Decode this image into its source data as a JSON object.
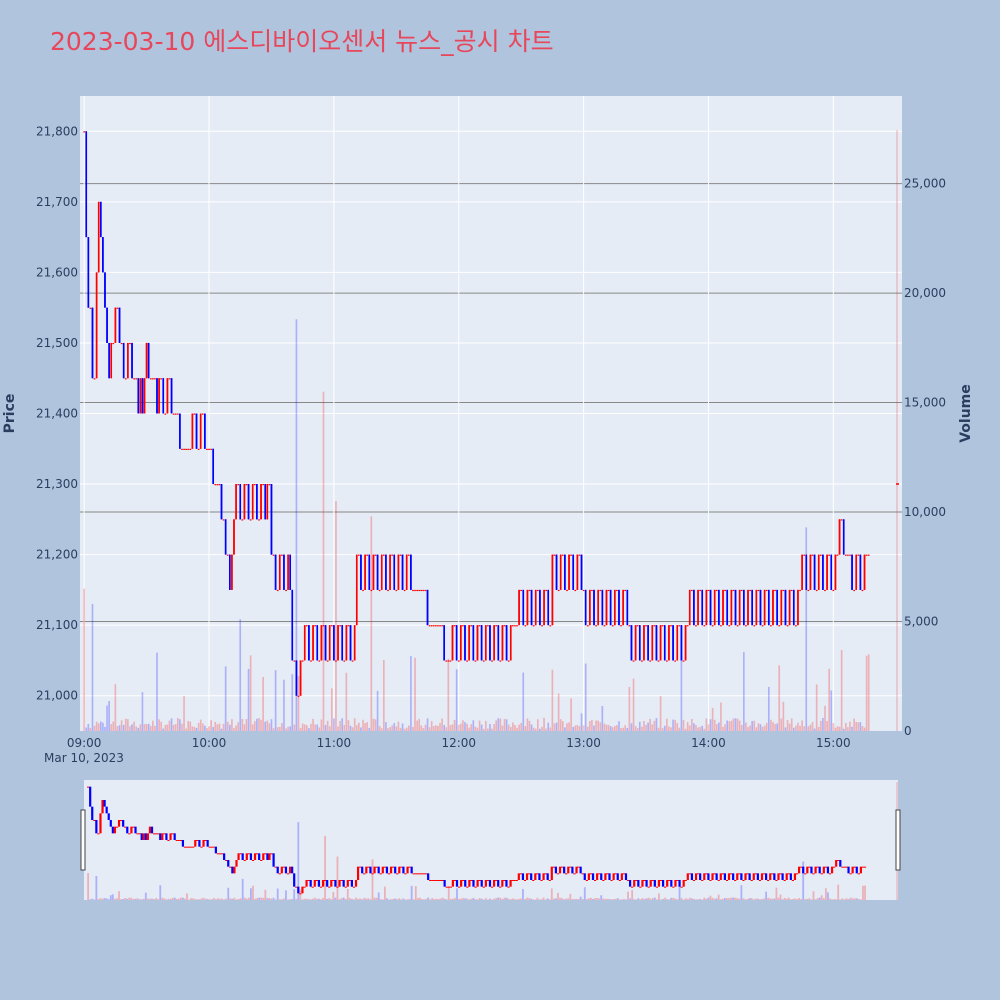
{
  "title": "2023-03-10 에스디바이오센서 뉴스_공시 차트",
  "colors": {
    "up": "#ff0000",
    "down": "#0000ff",
    "background": "#b0c4de",
    "plot_bg": "#e5ecf6",
    "title": "#e8465a"
  },
  "chart_data": {
    "type": "candlestick",
    "date_label": "Mar 10, 2023",
    "ylabel": "Price",
    "y2label": "Volume",
    "price_ylim": [
      20950,
      21850
    ],
    "price_ticks": [
      21000,
      21100,
      21200,
      21300,
      21400,
      21500,
      21600,
      21700,
      21800
    ],
    "price_tick_labels": [
      "21,000",
      "21,100",
      "21,200",
      "21,300",
      "21,400",
      "21,500",
      "21,600",
      "21,700",
      "21,800"
    ],
    "volume_ylim": [
      0,
      29000
    ],
    "volume_ticks": [
      0,
      5000,
      10000,
      15000,
      20000,
      25000
    ],
    "volume_tick_labels": [
      "0",
      "5,000",
      "10,000",
      "15,000",
      "20,000",
      "25,000"
    ],
    "x_range_min": [
      -2,
      393
    ],
    "x_ticks": [
      0,
      60,
      120,
      180,
      240,
      300,
      360
    ],
    "x_tick_labels": [
      "09:00",
      "10:00",
      "11:00",
      "12:00",
      "13:00",
      "14:00",
      "15:00"
    ],
    "rangeslider": true,
    "price_path": [
      [
        0,
        21800
      ],
      [
        1,
        21650
      ],
      [
        2,
        21550
      ],
      [
        4,
        21450
      ],
      [
        6,
        21600
      ],
      [
        7,
        21700
      ],
      [
        8,
        21650
      ],
      [
        9,
        21600
      ],
      [
        10,
        21550
      ],
      [
        11,
        21500
      ],
      [
        12,
        21450
      ],
      [
        13,
        21500
      ],
      [
        15,
        21550
      ],
      [
        17,
        21500
      ],
      [
        19,
        21450
      ],
      [
        21,
        21500
      ],
      [
        23,
        21450
      ],
      [
        25,
        21450
      ],
      [
        26,
        21400
      ],
      [
        27,
        21450
      ],
      [
        28,
        21400
      ],
      [
        29,
        21450
      ],
      [
        30,
        21500
      ],
      [
        31,
        21450
      ],
      [
        33,
        21450
      ],
      [
        35,
        21400
      ],
      [
        36,
        21450
      ],
      [
        38,
        21400
      ],
      [
        40,
        21450
      ],
      [
        42,
        21400
      ],
      [
        45,
        21400
      ],
      [
        46,
        21350
      ],
      [
        48,
        21350
      ],
      [
        50,
        21350
      ],
      [
        52,
        21400
      ],
      [
        54,
        21350
      ],
      [
        56,
        21400
      ],
      [
        58,
        21350
      ],
      [
        60,
        21350
      ],
      [
        62,
        21300
      ],
      [
        64,
        21300
      ],
      [
        66,
        21250
      ],
      [
        67,
        21250
      ],
      [
        68,
        21200
      ],
      [
        69,
        21200
      ],
      [
        70,
        21150
      ],
      [
        71,
        21200
      ],
      [
        72,
        21250
      ],
      [
        73,
        21300
      ],
      [
        74,
        21300
      ],
      [
        75,
        21250
      ],
      [
        77,
        21300
      ],
      [
        79,
        21250
      ],
      [
        81,
        21300
      ],
      [
        83,
        21250
      ],
      [
        85,
        21300
      ],
      [
        87,
        21250
      ],
      [
        88,
        21300
      ],
      [
        90,
        21200
      ],
      [
        92,
        21150
      ],
      [
        94,
        21200
      ],
      [
        96,
        21150
      ],
      [
        98,
        21200
      ],
      [
        99,
        21150
      ],
      [
        100,
        21050
      ],
      [
        102,
        21000
      ],
      [
        104,
        21050
      ],
      [
        106,
        21100
      ],
      [
        108,
        21050
      ],
      [
        110,
        21100
      ],
      [
        112,
        21050
      ],
      [
        114,
        21100
      ],
      [
        116,
        21050
      ],
      [
        118,
        21100
      ],
      [
        120,
        21050
      ],
      [
        122,
        21100
      ],
      [
        124,
        21050
      ],
      [
        126,
        21100
      ],
      [
        128,
        21050
      ],
      [
        130,
        21100
      ],
      [
        131,
        21200
      ],
      [
        133,
        21150
      ],
      [
        135,
        21200
      ],
      [
        137,
        21150
      ],
      [
        139,
        21200
      ],
      [
        141,
        21150
      ],
      [
        143,
        21200
      ],
      [
        145,
        21150
      ],
      [
        147,
        21200
      ],
      [
        149,
        21150
      ],
      [
        151,
        21200
      ],
      [
        153,
        21150
      ],
      [
        155,
        21200
      ],
      [
        157,
        21150
      ],
      [
        159,
        21150
      ],
      [
        161,
        21150
      ],
      [
        163,
        21150
      ],
      [
        165,
        21100
      ],
      [
        167,
        21100
      ],
      [
        169,
        21100
      ],
      [
        171,
        21100
      ],
      [
        173,
        21050
      ],
      [
        175,
        21050
      ],
      [
        177,
        21100
      ],
      [
        179,
        21050
      ],
      [
        181,
        21100
      ],
      [
        183,
        21050
      ],
      [
        185,
        21100
      ],
      [
        187,
        21050
      ],
      [
        189,
        21100
      ],
      [
        191,
        21050
      ],
      [
        193,
        21100
      ],
      [
        195,
        21050
      ],
      [
        197,
        21100
      ],
      [
        199,
        21050
      ],
      [
        201,
        21100
      ],
      [
        203,
        21050
      ],
      [
        205,
        21100
      ],
      [
        207,
        21100
      ],
      [
        209,
        21150
      ],
      [
        211,
        21100
      ],
      [
        213,
        21150
      ],
      [
        215,
        21100
      ],
      [
        217,
        21150
      ],
      [
        219,
        21100
      ],
      [
        221,
        21150
      ],
      [
        223,
        21100
      ],
      [
        225,
        21200
      ],
      [
        227,
        21150
      ],
      [
        229,
        21200
      ],
      [
        231,
        21150
      ],
      [
        233,
        21200
      ],
      [
        235,
        21150
      ],
      [
        237,
        21200
      ],
      [
        239,
        21150
      ],
      [
        241,
        21100
      ],
      [
        243,
        21150
      ],
      [
        245,
        21100
      ],
      [
        247,
        21150
      ],
      [
        249,
        21100
      ],
      [
        251,
        21150
      ],
      [
        253,
        21100
      ],
      [
        255,
        21150
      ],
      [
        257,
        21100
      ],
      [
        259,
        21150
      ],
      [
        261,
        21100
      ],
      [
        263,
        21050
      ],
      [
        265,
        21100
      ],
      [
        267,
        21050
      ],
      [
        269,
        21100
      ],
      [
        271,
        21050
      ],
      [
        273,
        21100
      ],
      [
        275,
        21050
      ],
      [
        277,
        21100
      ],
      [
        279,
        21050
      ],
      [
        281,
        21100
      ],
      [
        283,
        21050
      ],
      [
        285,
        21100
      ],
      [
        287,
        21050
      ],
      [
        289,
        21100
      ],
      [
        291,
        21150
      ],
      [
        293,
        21100
      ],
      [
        295,
        21150
      ],
      [
        297,
        21100
      ],
      [
        299,
        21150
      ],
      [
        301,
        21100
      ],
      [
        303,
        21150
      ],
      [
        305,
        21100
      ],
      [
        307,
        21150
      ],
      [
        309,
        21100
      ],
      [
        311,
        21150
      ],
      [
        313,
        21100
      ],
      [
        315,
        21150
      ],
      [
        317,
        21100
      ],
      [
        319,
        21150
      ],
      [
        321,
        21100
      ],
      [
        323,
        21150
      ],
      [
        325,
        21100
      ],
      [
        327,
        21150
      ],
      [
        329,
        21100
      ],
      [
        331,
        21150
      ],
      [
        333,
        21100
      ],
      [
        335,
        21150
      ],
      [
        337,
        21100
      ],
      [
        339,
        21150
      ],
      [
        341,
        21100
      ],
      [
        343,
        21150
      ],
      [
        345,
        21200
      ],
      [
        347,
        21150
      ],
      [
        349,
        21200
      ],
      [
        351,
        21150
      ],
      [
        353,
        21200
      ],
      [
        355,
        21150
      ],
      [
        357,
        21200
      ],
      [
        359,
        21150
      ],
      [
        361,
        21200
      ],
      [
        363,
        21250
      ],
      [
        365,
        21200
      ],
      [
        367,
        21200
      ],
      [
        369,
        21150
      ],
      [
        371,
        21200
      ],
      [
        373,
        21150
      ],
      [
        375,
        21200
      ],
      [
        377,
        21200
      ]
    ],
    "volume_notes": "minute volumes, mostly small with occasional spikes"
  }
}
